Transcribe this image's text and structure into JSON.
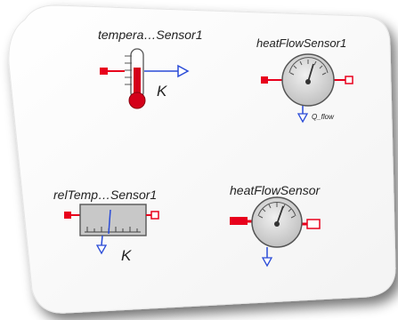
{
  "components": [
    {
      "id": "temperature-sensor",
      "name": "tempera…Sensor1",
      "unit": "K"
    },
    {
      "id": "heat-flow-sensor-1",
      "name": "heatFlowSensor1",
      "port": "Q_flow"
    },
    {
      "id": "rel-temp-sensor",
      "name": "relTemp…Sensor1",
      "unit": "K"
    },
    {
      "id": "heat-flow-sensor",
      "name": "heatFlowSensor"
    }
  ],
  "colors": {
    "port_red": "#e8001c",
    "signal_blue": "#2a4bd7",
    "body_gray": "#c8c8c8",
    "thermometer_red": "#d4001a"
  }
}
